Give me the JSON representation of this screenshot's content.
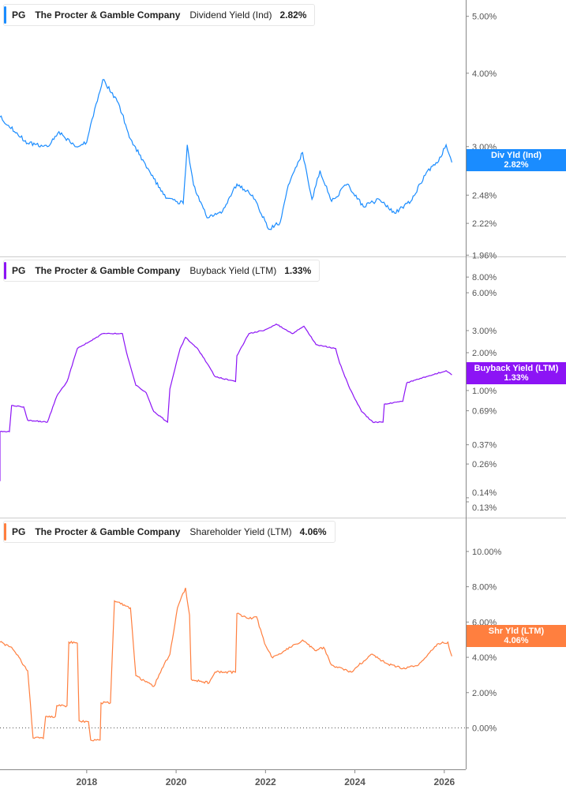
{
  "ticker": "PG",
  "company": "The Procter & Gamble Company",
  "chart_data": [
    {
      "type": "line",
      "title": "Dividend Yield (Ind)",
      "current": "2.82%",
      "badge_label": "Div Yld (Ind)",
      "color": "#1a8cff",
      "scale": "log",
      "yticks": [
        "5.00%",
        "4.00%",
        "3.00%",
        "2.48%",
        "2.22%",
        "1.96%"
      ],
      "ytick_values": [
        5,
        4,
        3,
        2.48,
        2.22,
        1.96
      ],
      "ylim": [
        1.95,
        5.2
      ],
      "x": [
        2016.06,
        2016.68,
        2017.12,
        2017.38,
        2017.74,
        2018.0,
        2018.18,
        2018.36,
        2018.71,
        2018.98,
        2019.42,
        2019.77,
        2020.16,
        2020.25,
        2020.39,
        2020.69,
        2021.01,
        2021.36,
        2021.71,
        2022.07,
        2022.33,
        2022.51,
        2022.83,
        2023.04,
        2023.22,
        2023.48,
        2023.83,
        2024.19,
        2024.54,
        2024.89,
        2025.25,
        2025.6,
        2025.87,
        2026.04,
        2026.17
      ],
      "y": [
        3.37,
        3.04,
        3.0,
        3.18,
        3.0,
        3.05,
        3.48,
        3.9,
        3.56,
        3.09,
        2.71,
        2.45,
        2.4,
        3.02,
        2.58,
        2.27,
        2.31,
        2.59,
        2.48,
        2.17,
        2.23,
        2.58,
        2.93,
        2.44,
        2.73,
        2.42,
        2.59,
        2.37,
        2.44,
        2.31,
        2.42,
        2.71,
        2.83,
        3.02,
        2.82
      ]
    },
    {
      "type": "line",
      "title": "Buyback Yield (LTM)",
      "current": "1.33%",
      "badge_label": "Buyback Yield (LTM)",
      "color": "#8c14f5",
      "scale": "log",
      "yticks": [
        "8.00%",
        "6.00%",
        "3.00%",
        "2.00%",
        "1.00%",
        "0.69%",
        "0.37%",
        "0.26%",
        "0.14%",
        "0.13%"
      ],
      "ytick_values": [
        8,
        6,
        3,
        2,
        1,
        0.69,
        0.37,
        0.26,
        0.14,
        0.13
      ],
      "ylim": [
        0.13,
        9
      ],
      "x": [
        2016.06,
        2016.06,
        2016.27,
        2016.32,
        2016.59,
        2016.68,
        2017.12,
        2017.33,
        2017.56,
        2017.79,
        2018.09,
        2018.36,
        2018.8,
        2018.89,
        2019.1,
        2019.33,
        2019.5,
        2019.81,
        2019.86,
        2020.09,
        2020.21,
        2020.48,
        2020.69,
        2020.87,
        2021.33,
        2021.36,
        2021.63,
        2021.98,
        2022.24,
        2022.6,
        2022.86,
        2023.13,
        2023.57,
        2023.66,
        2023.89,
        2024.15,
        2024.4,
        2024.63,
        2024.66,
        2025.07,
        2025.16,
        2025.6,
        2026.04,
        2026.17
      ],
      "y": [
        0.19,
        0.47,
        0.47,
        0.76,
        0.74,
        0.58,
        0.56,
        0.9,
        1.18,
        2.16,
        2.48,
        2.84,
        2.84,
        2.02,
        1.1,
        0.96,
        0.68,
        0.56,
        1.03,
        2.16,
        2.65,
        2.16,
        1.65,
        1.29,
        1.18,
        1.89,
        2.84,
        3.03,
        3.38,
        2.84,
        3.25,
        2.32,
        2.16,
        1.65,
        1.03,
        0.68,
        0.56,
        0.56,
        0.78,
        0.82,
        1.15,
        1.29,
        1.44,
        1.33
      ]
    },
    {
      "type": "line",
      "title": "Shareholder Yield (LTM)",
      "current": "4.06%",
      "badge_label": "Shr Yld (LTM)",
      "color": "#ff7f3f",
      "scale": "linear",
      "yticks": [
        "10.00%",
        "8.00%",
        "6.00%",
        "4.00%",
        "2.00%",
        "0.00%"
      ],
      "ytick_values": [
        10,
        8,
        6,
        4,
        2,
        0
      ],
      "ylim": [
        -1.9,
        10.8
      ],
      "x": [
        2016.06,
        2016.32,
        2016.68,
        2016.8,
        2017.03,
        2017.08,
        2017.3,
        2017.33,
        2017.56,
        2017.6,
        2017.79,
        2017.83,
        2018.04,
        2018.09,
        2018.3,
        2018.32,
        2018.53,
        2018.62,
        2018.98,
        2019.1,
        2019.5,
        2019.68,
        2019.86,
        2020.03,
        2020.21,
        2020.3,
        2020.34,
        2020.74,
        2020.87,
        2021.33,
        2021.36,
        2021.63,
        2021.8,
        2021.98,
        2022.16,
        2022.42,
        2022.83,
        2023.13,
        2023.3,
        2023.48,
        2023.92,
        2024.36,
        2024.72,
        2025.07,
        2025.42,
        2025.87,
        2026.08,
        2026.17
      ],
      "y": [
        4.86,
        4.57,
        3.24,
        -0.57,
        -0.6,
        0.65,
        0.65,
        1.26,
        1.26,
        4.86,
        4.8,
        0.4,
        0.35,
        -0.69,
        -0.69,
        1.42,
        1.42,
        7.2,
        6.8,
        2.96,
        2.35,
        3.36,
        4.17,
        6.8,
        7.94,
        6.4,
        2.75,
        2.55,
        3.16,
        3.16,
        6.48,
        6.19,
        6.3,
        4.78,
        3.97,
        4.37,
        4.98,
        4.37,
        4.57,
        3.56,
        3.16,
        4.17,
        3.64,
        3.36,
        3.56,
        4.78,
        4.86,
        4.06
      ]
    }
  ],
  "x_axis": {
    "ticks": [
      "2018",
      "2020",
      "2022",
      "2024",
      "2026"
    ],
    "tick_values": [
      2018,
      2020,
      2022,
      2024,
      2026
    ],
    "xlim": [
      2016.06,
      2026.48
    ]
  }
}
